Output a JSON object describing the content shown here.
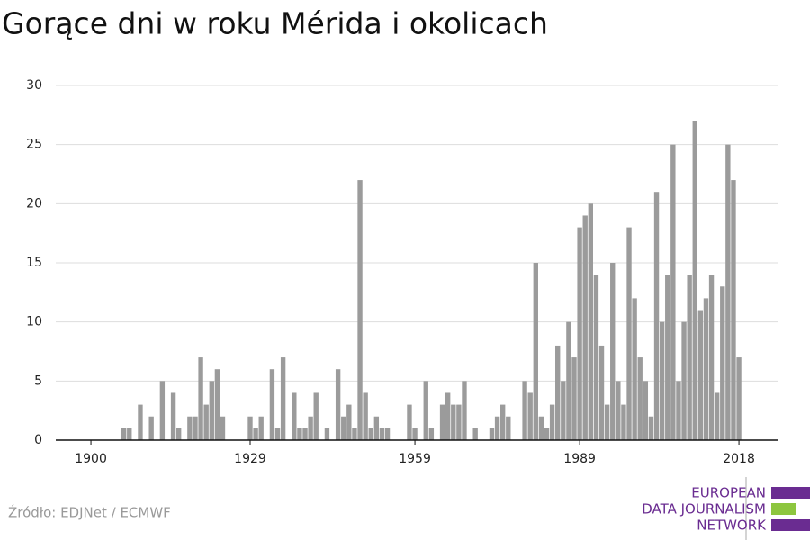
{
  "chart_data": {
    "type": "bar",
    "title": "Gorące dni w roku Mérida i okolicach",
    "source": "Źródło: EDJNet / ECMWF",
    "logo": [
      "EUROPEAN",
      "DATA JOURNALISM",
      "NETWORK"
    ],
    "color": "#9b9b9b",
    "grid": true,
    "x": [
      1900,
      1901,
      1902,
      1903,
      1904,
      1905,
      1906,
      1907,
      1908,
      1909,
      1910,
      1911,
      1912,
      1913,
      1914,
      1915,
      1916,
      1917,
      1918,
      1919,
      1920,
      1921,
      1922,
      1923,
      1924,
      1925,
      1926,
      1927,
      1928,
      1929,
      1930,
      1931,
      1932,
      1933,
      1934,
      1935,
      1936,
      1937,
      1938,
      1939,
      1940,
      1941,
      1942,
      1943,
      1944,
      1945,
      1946,
      1947,
      1948,
      1949,
      1950,
      1951,
      1952,
      1953,
      1954,
      1955,
      1956,
      1957,
      1958,
      1959,
      1960,
      1961,
      1962,
      1963,
      1964,
      1965,
      1966,
      1967,
      1968,
      1969,
      1970,
      1971,
      1972,
      1973,
      1974,
      1975,
      1976,
      1977,
      1978,
      1979,
      1980,
      1981,
      1982,
      1983,
      1984,
      1985,
      1986,
      1987,
      1988,
      1989,
      1990,
      1991,
      1992,
      1993,
      1994,
      1995,
      1996,
      1997,
      1998,
      1999,
      2000,
      2001,
      2002,
      2003,
      2004,
      2005,
      2006,
      2007,
      2008,
      2009,
      2010,
      2011,
      2012,
      2013,
      2014,
      2015,
      2016,
      2017,
      2018
    ],
    "values": [
      0,
      0,
      0,
      0,
      0,
      0,
      1,
      1,
      0,
      3,
      0,
      2,
      0,
      5,
      0,
      4,
      1,
      0,
      2,
      2,
      7,
      3,
      5,
      6,
      2,
      0,
      0,
      0,
      0,
      2,
      1,
      2,
      0,
      6,
      1,
      7,
      0,
      4,
      1,
      1,
      2,
      4,
      0,
      1,
      0,
      6,
      2,
      3,
      1,
      22,
      4,
      1,
      2,
      1,
      1,
      0,
      0,
      0,
      3,
      1,
      0,
      5,
      1,
      0,
      3,
      4,
      3,
      3,
      5,
      0,
      1,
      0,
      0,
      1,
      2,
      3,
      2,
      0,
      0,
      5,
      4,
      15,
      2,
      1,
      3,
      8,
      5,
      10,
      7,
      18,
      19,
      20,
      14,
      8,
      3,
      15,
      5,
      3,
      18,
      12,
      7,
      5,
      2,
      21,
      10,
      14,
      25,
      5,
      10,
      14,
      27,
      11,
      12,
      14,
      4,
      13,
      25,
      22,
      7
    ],
    "xlim": [
      1893.6,
      2025.2
    ],
    "xticks": [
      1900,
      1929,
      1959,
      1989,
      2018
    ],
    "ylim": [
      0,
      30
    ],
    "yticks": [
      0,
      5,
      10,
      15,
      20,
      25,
      30
    ]
  }
}
